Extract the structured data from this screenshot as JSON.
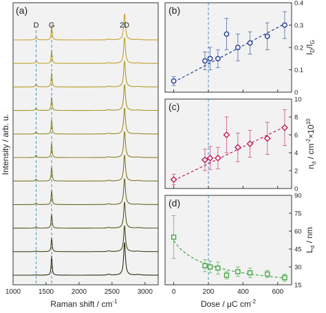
{
  "chart_data": [
    {
      "panel": "(a)",
      "type": "line",
      "xlabel": "Raman shift / cm",
      "xlabel_sup": "-1",
      "ylabel": "Intensity / arb. u.",
      "xlim": [
        1000,
        3200
      ],
      "xticks": [
        1000,
        1500,
        2000,
        2500,
        3000
      ],
      "xtick_labels": [
        "1000",
        "1500",
        "2000",
        "2500",
        "3000"
      ],
      "peak_labels": [
        {
          "text": "D",
          "x": 1350
        },
        {
          "text": "G",
          "x": 1585
        },
        {
          "text": "2D",
          "x": 2690
        }
      ],
      "dashed_lines_x": [
        1350,
        1585
      ],
      "peaks": {
        "D": 1350,
        "G": 1585,
        "2D": 2690
      },
      "spectra": [
        {
          "color": "#c9a227",
          "D": 0.12,
          "G": 0.55,
          "2D": 1.0
        },
        {
          "color": "#bfa126",
          "D": 0.1,
          "G": 0.5,
          "2D": 1.0
        },
        {
          "color": "#b39c26",
          "D": 0.11,
          "G": 0.55,
          "2D": 1.0
        },
        {
          "color": "#a69425",
          "D": 0.1,
          "G": 0.52,
          "2D": 1.0
        },
        {
          "color": "#998c24",
          "D": 0.09,
          "G": 0.55,
          "2D": 1.0
        },
        {
          "color": "#8c8224",
          "D": 0.09,
          "G": 0.55,
          "2D": 1.0
        },
        {
          "color": "#7c7523",
          "D": 0.07,
          "G": 0.55,
          "2D": 1.0
        },
        {
          "color": "#6a6621",
          "D": 0.06,
          "G": 0.55,
          "2D": 1.0
        },
        {
          "color": "#58561e",
          "D": 0.05,
          "G": 0.55,
          "2D": 1.0
        },
        {
          "color": "#454419",
          "D": 0.03,
          "G": 0.55,
          "2D": 1.0
        },
        {
          "color": "#2b2b14",
          "D": 0.01,
          "G": 0.6,
          "2D": 1.0
        }
      ]
    },
    {
      "panel": "(b)",
      "type": "scatter",
      "ylabel": "I",
      "ylabel_parts": [
        "I",
        "D",
        "/I",
        "G"
      ],
      "ylim": [
        0,
        0.4
      ],
      "yticks": [
        0,
        0.1,
        0.2,
        0.3,
        0.4
      ],
      "ytick_labels": [
        "0",
        "0.1",
        "0.2",
        "0.3",
        "0.4"
      ],
      "color": "#1f3a93",
      "marker": "circle",
      "x": [
        0,
        180,
        210,
        255,
        305,
        370,
        440,
        540,
        640
      ],
      "y": [
        0.05,
        0.14,
        0.15,
        0.15,
        0.26,
        0.2,
        0.22,
        0.25,
        0.3
      ],
      "yerr": [
        0.02,
        0.04,
        0.05,
        0.04,
        0.07,
        0.06,
        0.05,
        0.06,
        0.06
      ],
      "fit": {
        "type": "linear",
        "x": [
          0,
          650
        ],
        "y": [
          0.045,
          0.31
        ]
      }
    },
    {
      "panel": "(c)",
      "type": "scatter",
      "ylabel": "n",
      "ylabel_parts": [
        "n",
        "d",
        " / cm",
        "-2",
        "×10",
        "10"
      ],
      "ylim": [
        0,
        10
      ],
      "yticks": [
        0,
        2,
        4,
        6,
        8,
        10
      ],
      "ytick_labels": [
        "0",
        "2",
        "4",
        "6",
        "8",
        "10"
      ],
      "color": "#c2185b",
      "marker": "diamond",
      "x": [
        0,
        180,
        210,
        255,
        305,
        370,
        440,
        540,
        640
      ],
      "y": [
        1.0,
        3.2,
        3.4,
        3.4,
        6.0,
        4.6,
        5.0,
        5.6,
        6.8
      ],
      "yerr": [
        0.6,
        1.2,
        1.3,
        1.2,
        2.0,
        1.6,
        1.5,
        1.8,
        2.0
      ],
      "fit": {
        "type": "linear",
        "x": [
          0,
          650
        ],
        "y": [
          0.9,
          7.0
        ]
      }
    },
    {
      "panel": "(d)",
      "type": "scatter",
      "xlabel": "Dose / μC cm",
      "xlabel_sup": "-2",
      "ylabel": "L",
      "ylabel_parts": [
        "L",
        "d",
        " / nm"
      ],
      "xlim": [
        -50,
        680
      ],
      "xticks": [
        0,
        200,
        400,
        600
      ],
      "xtick_labels": [
        "0",
        "200",
        "400",
        "600"
      ],
      "ylim": [
        15,
        90
      ],
      "yticks": [
        15,
        30,
        45,
        60,
        75,
        90
      ],
      "ytick_labels": [
        "15",
        "30",
        "45",
        "60",
        "75",
        "90"
      ],
      "color": "#3aa13a",
      "marker": "square",
      "x": [
        0,
        180,
        210,
        255,
        305,
        370,
        440,
        540,
        640
      ],
      "y": [
        55,
        31,
        30,
        29,
        23,
        26,
        25,
        24,
        21
      ],
      "yerr": [
        18,
        5,
        5,
        5,
        3,
        4,
        4,
        3,
        3
      ],
      "fit": {
        "type": "power",
        "x0": 8,
        "y0": 52,
        "k": 0.5
      }
    }
  ],
  "shared": {
    "dose_dashed_x": 200,
    "dose_xlim": [
      -50,
      680
    ]
  },
  "panel_labels": {
    "a": "(a)",
    "b": "(b)",
    "c": "(c)",
    "d": "(d)"
  }
}
